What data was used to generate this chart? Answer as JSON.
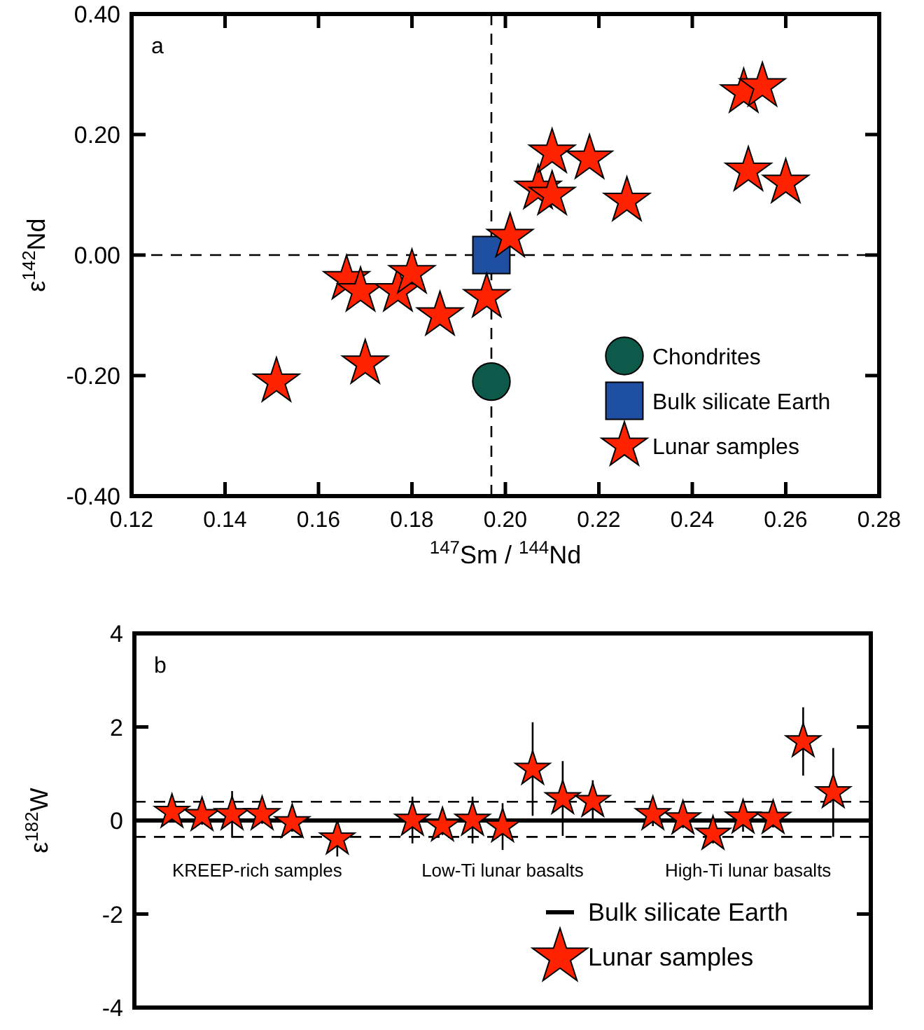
{
  "chart_data": [
    {
      "type": "scatter",
      "xlabel": "$^{147}$Sm / $^{144}$Nd",
      "ylabel": "ε$^{142}$Nd",
      "annotations": [
        "a"
      ],
      "xlim": [
        0.12,
        0.28
      ],
      "xticks": [
        {
          "value": 0.12,
          "label": "0.12"
        },
        {
          "value": 0.14,
          "label": "0.14"
        },
        {
          "value": 0.16,
          "label": "0.16"
        },
        {
          "value": 0.18,
          "label": "0.18"
        },
        {
          "value": 0.2,
          "label": "0.20"
        },
        {
          "value": 0.22,
          "label": "0.22"
        },
        {
          "value": 0.24,
          "label": "0.24"
        },
        {
          "value": 0.26,
          "label": "0.26"
        },
        {
          "value": 0.28,
          "label": "0.28"
        }
      ],
      "ylim": [
        -0.4,
        0.4
      ],
      "yticks": [
        {
          "value": -0.4,
          "label": "-0.40"
        },
        {
          "value": -0.2,
          "label": "-0.20"
        },
        {
          "value": 0,
          "label": "0.00"
        },
        {
          "value": 0.2,
          "label": "0.20"
        },
        {
          "value": 0.4,
          "label": "0.40"
        }
      ],
      "grid": false,
      "legend": "bottom right",
      "ref_lines": [
        {
          "axis": "x",
          "value": 0.197,
          "line_style": "dashed"
        },
        {
          "axis": "y",
          "value": 0,
          "line_style": "dashed"
        }
      ],
      "series": [
        {
          "name": "Chondrites",
          "color": "#0e5a4a",
          "marker": "circle",
          "x": [
            0.197
          ],
          "values": [
            -0.21
          ]
        },
        {
          "name": "Bulk silicate Earth",
          "color": "#1f4fa0",
          "marker": "square",
          "x": [
            0.197
          ],
          "values": [
            0.0
          ]
        },
        {
          "name": "Lunar samples",
          "color": "#ff2200",
          "marker": "star",
          "x": [
            0.151,
            0.17,
            0.166,
            0.169,
            0.177,
            0.18,
            0.186,
            0.196,
            0.201,
            0.207,
            0.21,
            0.21,
            0.218,
            0.226,
            0.251,
            0.255,
            0.252,
            0.26
          ],
          "values": [
            -0.21,
            -0.18,
            -0.04,
            -0.06,
            -0.06,
            -0.03,
            -0.1,
            -0.07,
            0.03,
            0.11,
            0.17,
            0.1,
            0.16,
            0.09,
            0.27,
            0.28,
            0.14,
            0.12
          ]
        }
      ]
    },
    {
      "type": "scatter",
      "ylabel": "ε$^{182}$W",
      "annotations": [
        "b",
        "KREEP-rich samples",
        "Low-Ti lunar basalts",
        "High-Ti lunar basalts"
      ],
      "categories": [
        null,
        null,
        null,
        null,
        null,
        null,
        null,
        null,
        null,
        null,
        null,
        null,
        null,
        null,
        null,
        null,
        null,
        null,
        null,
        null,
        null,
        null,
        null,
        null,
        null,
        null,
        null,
        null,
        null,
        null,
        null,
        null,
        null,
        null,
        null,
        null,
        null,
        null,
        null,
        null,
        null,
        null,
        null,
        null,
        null,
        null,
        null,
        null,
        null
      ],
      "ylim": [
        -4,
        4
      ],
      "yticks": [
        -4,
        -2,
        0,
        2,
        4
      ],
      "tick_labels": "y",
      "grid": false,
      "legend": "bottom right",
      "ref_lines": [
        {
          "axis": "y",
          "value": 0,
          "line_style": "solid",
          "label": "Bulk silicate Earth"
        },
        {
          "axis": "y",
          "value": 0.4,
          "line_style": "dashed"
        },
        {
          "axis": "y",
          "value": -0.35,
          "line_style": "dashed"
        }
      ],
      "series": [
        {
          "name": "Lunar samples",
          "color": "#ff2200",
          "marker": "star",
          "values": [
            null,
            null,
            0.18,
            null,
            0.11,
            null,
            0.13,
            null,
            0.13,
            null,
            -0.04,
            null,
            null,
            -0.39,
            null,
            null,
            null,
            null,
            0.01,
            null,
            -0.11,
            null,
            0.01,
            null,
            -0.13,
            null,
            1.1,
            null,
            0.47,
            null,
            0.41,
            null,
            null,
            null,
            0.13,
            null,
            0.04,
            null,
            -0.29,
            null,
            0.06,
            null,
            0.05,
            null,
            1.69,
            null,
            0.6,
            null,
            null
          ],
          "errors": [
            null,
            null,
            0.2,
            null,
            0.2,
            null,
            0.5,
            null,
            0.2,
            null,
            0.2,
            null,
            null,
            0.38,
            null,
            null,
            null,
            null,
            0.5,
            null,
            0.2,
            null,
            0.5,
            null,
            0.5,
            null,
            1.0,
            null,
            0.8,
            null,
            0.45,
            null,
            null,
            null,
            0.25,
            null,
            0.2,
            null,
            0.2,
            null,
            0.3,
            null,
            0.2,
            null,
            0.73,
            null,
            0.95,
            null,
            null
          ]
        }
      ]
    }
  ]
}
